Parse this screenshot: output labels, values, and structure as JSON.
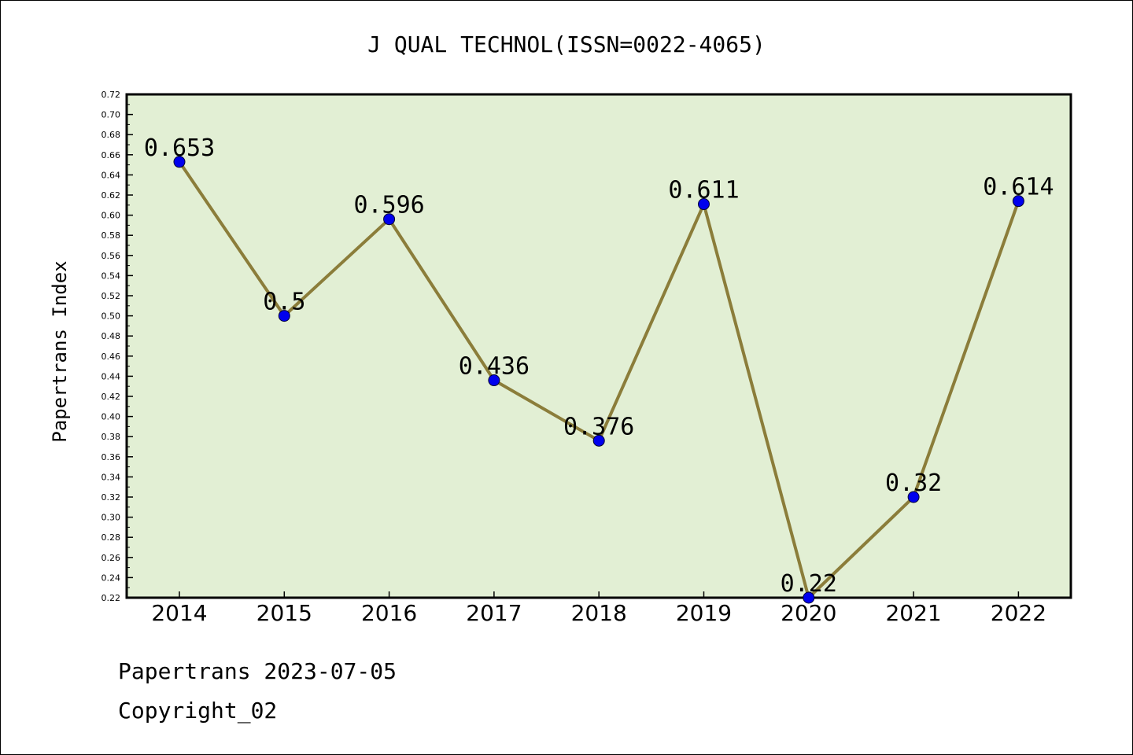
{
  "chart_data": {
    "type": "line",
    "title": "J QUAL TECHNOL(ISSN=0022-4065)",
    "xlabel": "",
    "ylabel": "Papertrans Index",
    "categories": [
      "2014",
      "2015",
      "2016",
      "2017",
      "2018",
      "2019",
      "2020",
      "2021",
      "2022"
    ],
    "series": [
      {
        "values": [
          0.653,
          0.5,
          0.596,
          0.436,
          0.376,
          0.611,
          0.22,
          0.32,
          0.614
        ],
        "labels": [
          "0.653",
          "0.5",
          "0.596",
          "0.436",
          "0.376",
          "0.611",
          "0.22",
          "0.32",
          "0.614"
        ]
      }
    ],
    "ylim": [
      0.22,
      0.72
    ],
    "yticks": [
      "0.22",
      "0.24",
      "0.26",
      "0.28",
      "0.30",
      "0.32",
      "0.34",
      "0.36",
      "0.38",
      "0.40",
      "0.42",
      "0.44",
      "0.46",
      "0.48",
      "0.50",
      "0.52",
      "0.54",
      "0.56",
      "0.58",
      "0.60",
      "0.62",
      "0.64",
      "0.66",
      "0.68",
      "0.70",
      "0.72"
    ],
    "grid": false,
    "legend": "none"
  },
  "footer": {
    "line1": "Papertrans 2023-07-05",
    "line2": "Copyright_02"
  },
  "colors": {
    "plot_background": "#e2efd4",
    "line": "#8b7d3a",
    "marker": "#0000ee",
    "axis": "#000000"
  }
}
